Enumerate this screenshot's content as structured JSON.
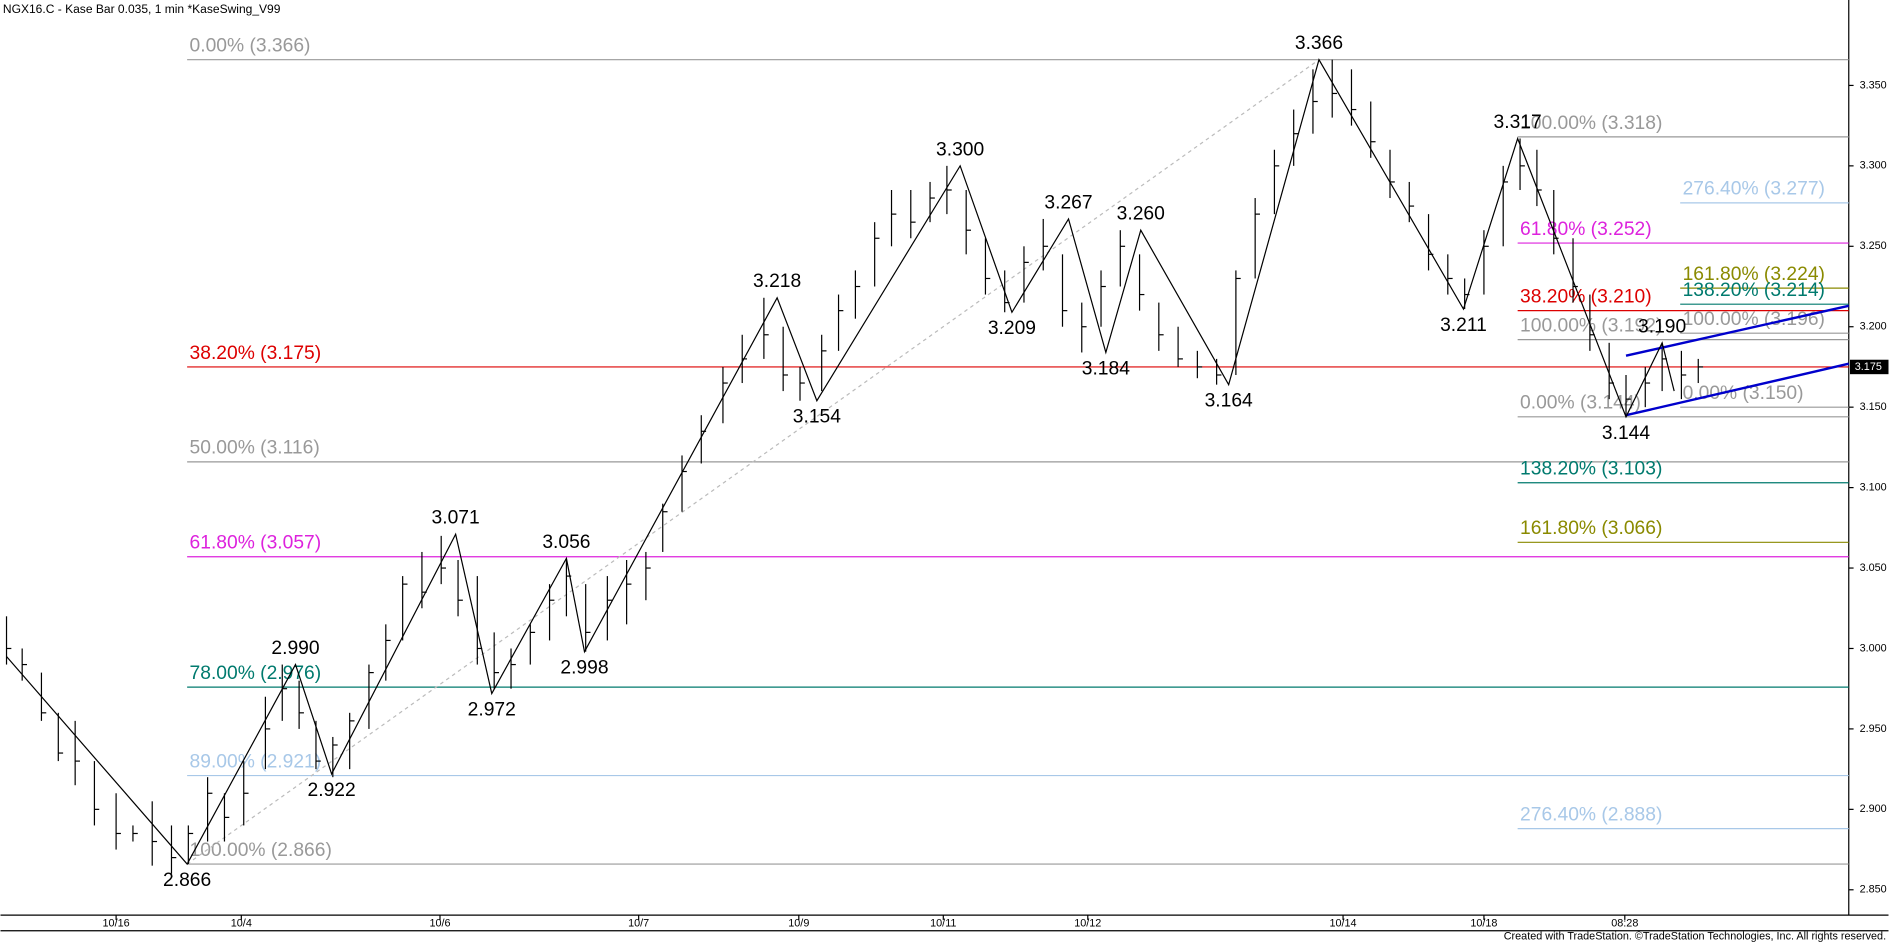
{
  "chart_data": {
    "type": "ohlc",
    "title": "NGX16.C - Kase Bar 0.035, 1 min  *KaseSwing_V99",
    "footer": "Created with TradeStation. ©TradeStation Technologies, Inc. All rights reserved.",
    "xlim": [
      0,
      153.5
    ],
    "ylim": [
      2.8163,
      3.4031
    ],
    "xticks": [
      {
        "value": 9.6,
        "label": "10/16"
      },
      {
        "value": 20,
        "label": "10/4"
      },
      {
        "value": 36.5,
        "label": "10/6"
      },
      {
        "value": 53,
        "label": "10/7"
      },
      {
        "value": 66.3,
        "label": "10/9"
      },
      {
        "value": 78.3,
        "label": "10/11"
      },
      {
        "value": 90.3,
        "label": "10/12"
      },
      {
        "value": 111.5,
        "label": "10/14"
      },
      {
        "value": 123.2,
        "label": "10/18"
      },
      {
        "value": 134.9,
        "label": "08:28"
      }
    ],
    "yticks": [
      {
        "value": 2.85,
        "label": "2.850"
      },
      {
        "value": 2.9,
        "label": "2.900"
      },
      {
        "value": 2.95,
        "label": "2.950"
      },
      {
        "value": 3.0,
        "label": "3.000"
      },
      {
        "value": 3.05,
        "label": "3.050"
      },
      {
        "value": 3.1,
        "label": "3.100"
      },
      {
        "value": 3.15,
        "label": "3.150"
      },
      {
        "value": 3.2,
        "label": "3.200"
      },
      {
        "value": 3.25,
        "label": "3.250"
      },
      {
        "value": 3.3,
        "label": "3.300"
      },
      {
        "value": 3.35,
        "label": "3.350"
      }
    ],
    "last": {
      "value": 3.175,
      "label": "3.175"
    },
    "bar_color": "#000000",
    "bars": {
      "x": [
        0.5,
        1.8,
        3.4,
        4.8,
        6.2,
        7.8,
        9.6,
        11,
        12.6,
        14.2,
        15.6,
        17.2,
        18.6,
        20.2,
        22,
        23.4,
        24.8,
        26.2,
        27.6,
        29,
        30.6,
        32,
        33.4,
        35,
        36.6,
        38,
        39.6,
        41,
        42.4,
        44,
        45.6,
        47,
        48.6,
        50.4,
        52,
        53.6,
        55,
        56.6,
        58.2,
        60,
        61.6,
        63.4,
        65,
        66.4,
        68.2,
        69.6,
        71,
        72.6,
        74,
        75.6,
        77.2,
        78.6,
        80.2,
        81.8,
        83.4,
        85,
        86.6,
        88.2,
        89.8,
        91.4,
        93,
        94.6,
        96.2,
        97.8,
        99.4,
        101,
        102.6,
        104.2,
        105.8,
        107.4,
        109,
        110.6,
        112.2,
        113.8,
        115.4,
        117,
        118.6,
        120.2,
        121.6,
        123.2,
        124.8,
        126.2,
        127.6,
        129,
        130.6,
        132,
        133.6,
        135,
        136.6,
        138,
        139.6,
        141
      ],
      "high": [
        3.02,
        3.0,
        2.985,
        2.96,
        2.955,
        2.93,
        2.91,
        2.89,
        2.905,
        2.89,
        2.89,
        2.92,
        2.91,
        2.93,
        2.97,
        2.99,
        2.98,
        2.955,
        2.945,
        2.96,
        2.99,
        3.015,
        3.045,
        3.06,
        3.07,
        3.055,
        3.045,
        3.01,
        3.0,
        3.015,
        3.04,
        3.056,
        3.04,
        3.045,
        3.055,
        3.06,
        3.09,
        3.12,
        3.145,
        3.175,
        3.195,
        3.218,
        3.2,
        3.175,
        3.195,
        3.22,
        3.235,
        3.265,
        3.285,
        3.285,
        3.29,
        3.3,
        3.285,
        3.255,
        3.235,
        3.25,
        3.267,
        3.245,
        3.215,
        3.235,
        3.26,
        3.245,
        3.215,
        3.2,
        3.185,
        3.18,
        3.235,
        3.28,
        3.31,
        3.335,
        3.36,
        3.366,
        3.36,
        3.34,
        3.31,
        3.29,
        3.27,
        3.245,
        3.23,
        3.26,
        3.3,
        3.317,
        3.31,
        3.285,
        3.255,
        3.22,
        3.19,
        3.17,
        3.175,
        3.19,
        3.185,
        3.18
      ],
      "low": [
        2.99,
        2.98,
        2.955,
        2.93,
        2.915,
        2.89,
        2.875,
        2.88,
        2.865,
        2.86,
        2.866,
        2.88,
        2.88,
        2.89,
        2.925,
        2.955,
        2.95,
        2.925,
        2.92,
        2.925,
        2.95,
        2.98,
        3.005,
        3.025,
        3.04,
        3.02,
        2.99,
        2.975,
        2.975,
        2.99,
        3.005,
        3.02,
        2.998,
        3.005,
        3.015,
        3.03,
        3.06,
        3.085,
        3.115,
        3.14,
        3.165,
        3.18,
        3.16,
        3.154,
        3.16,
        3.185,
        3.205,
        3.225,
        3.25,
        3.255,
        3.265,
        3.27,
        3.245,
        3.22,
        3.209,
        3.215,
        3.235,
        3.2,
        3.184,
        3.2,
        3.225,
        3.21,
        3.185,
        3.175,
        3.168,
        3.164,
        3.17,
        3.23,
        3.27,
        3.3,
        3.32,
        3.33,
        3.325,
        3.305,
        3.28,
        3.265,
        3.235,
        3.22,
        3.211,
        3.22,
        3.25,
        3.285,
        3.275,
        3.245,
        3.215,
        3.185,
        3.155,
        3.144,
        3.15,
        3.16,
        3.155,
        3.165
      ],
      "close": [
        3.0,
        2.99,
        2.96,
        2.935,
        2.93,
        2.9,
        2.885,
        2.885,
        2.88,
        2.87,
        2.885,
        2.91,
        2.895,
        2.91,
        2.95,
        2.975,
        2.96,
        2.93,
        2.94,
        2.955,
        2.985,
        3.005,
        3.04,
        3.035,
        3.05,
        3.03,
        3.0,
        2.985,
        2.99,
        3.01,
        3.03,
        3.045,
        3.01,
        3.03,
        3.04,
        3.05,
        3.085,
        3.11,
        3.135,
        3.165,
        3.18,
        3.195,
        3.17,
        3.165,
        3.185,
        3.21,
        3.225,
        3.255,
        3.27,
        3.265,
        3.28,
        3.285,
        3.26,
        3.23,
        3.215,
        3.24,
        3.25,
        3.21,
        3.2,
        3.225,
        3.25,
        3.22,
        3.195,
        3.18,
        3.175,
        3.17,
        3.23,
        3.27,
        3.3,
        3.32,
        3.34,
        3.345,
        3.335,
        3.315,
        3.29,
        3.275,
        3.245,
        3.23,
        3.22,
        3.25,
        3.29,
        3.3,
        3.285,
        3.255,
        3.225,
        3.195,
        3.165,
        3.155,
        3.165,
        3.18,
        3.17,
        3.175
      ]
    },
    "swings": {
      "color": "#000000",
      "x": [
        0.5,
        15.5,
        24.5,
        27.5,
        37.8,
        40.8,
        47,
        48.5,
        64.5,
        67.8,
        79.7,
        84,
        88.7,
        91.8,
        94.7,
        102,
        109.5,
        121.5,
        126,
        135,
        138,
        139
      ],
      "values": [
        2.995,
        2.866,
        2.99,
        2.922,
        3.071,
        2.972,
        3.056,
        2.998,
        3.218,
        3.154,
        3.3,
        3.209,
        3.267,
        3.184,
        3.26,
        3.164,
        3.366,
        3.211,
        3.317,
        3.144,
        3.19,
        3.16
      ],
      "value_labels": [
        null,
        "2.866",
        "2.990",
        "2.922",
        "3.071",
        "2.972",
        "3.056",
        "2.998",
        "3.218",
        "3.154",
        "3.300",
        "3.209",
        "3.267",
        "3.184",
        "3.260",
        "3.164",
        "3.366",
        "3.211",
        "3.317",
        "3.144",
        "3.190",
        null
      ]
    },
    "trendline": {
      "color": "#bbbbbb",
      "x": [
        15.5,
        109.5
      ],
      "values": [
        2.866,
        3.366
      ]
    },
    "channels": [
      {
        "color": "#0000cc",
        "x": [
          135,
          153.5
        ],
        "values": [
          3.182,
          3.213
        ]
      },
      {
        "color": "#0000cc",
        "x": [
          135,
          153.5
        ],
        "values": [
          3.145,
          3.177
        ]
      }
    ],
    "fib_levels": [
      {
        "label": "0.00% (3.366)",
        "value": 3.366,
        "start": 15.5,
        "color": "#999999"
      },
      {
        "label": "38.20% (3.175)",
        "value": 3.175,
        "start": 15.5,
        "color": "#dd0000"
      },
      {
        "label": "50.00% (3.116)",
        "value": 3.116,
        "start": 15.5,
        "color": "#999999"
      },
      {
        "label": "61.80% (3.057)",
        "value": 3.057,
        "start": 15.5,
        "color": "#dd22dd"
      },
      {
        "label": "78.00% (2.976)",
        "value": 2.976,
        "start": 15.5,
        "color": "#007a6e"
      },
      {
        "label": "89.00% (2.921)",
        "value": 2.921,
        "start": 15.5,
        "color": "#a8c8e8"
      },
      {
        "label": "100.00% (2.866)",
        "value": 2.866,
        "start": 15.5,
        "color": "#999999"
      },
      {
        "label": "100.00% (3.318)",
        "value": 3.318,
        "start": 126,
        "color": "#999999"
      },
      {
        "label": "61.80% (3.252)",
        "value": 3.252,
        "start": 126,
        "color": "#dd22dd"
      },
      {
        "label": "38.20% (3.210)",
        "value": 3.21,
        "start": 126,
        "color": "#dd0000"
      },
      {
        "label": "100.00% (3.192)",
        "value": 3.192,
        "start": 126,
        "color": "#999999"
      },
      {
        "label": "0.00% (3.144)",
        "value": 3.144,
        "start": 126,
        "color": "#999999"
      },
      {
        "label": "138.20% (3.103)",
        "value": 3.103,
        "start": 126,
        "color": "#007a6e"
      },
      {
        "label": "161.80% (3.066)",
        "value": 3.066,
        "start": 126,
        "color": "#8a8a00"
      },
      {
        "label": "276.40% (2.888)",
        "value": 2.888,
        "start": 126,
        "color": "#a8c8e8"
      },
      {
        "label": "276.40% (3.277)",
        "value": 3.277,
        "start": 139.5,
        "color": "#a8c8e8"
      },
      {
        "label": "161.80% (3.224)",
        "value": 3.224,
        "start": 139.5,
        "color": "#8a8a00"
      },
      {
        "label": "138.20% (3.214)",
        "value": 3.214,
        "start": 139.5,
        "color": "#007a6e"
      },
      {
        "label": "100.00% (3.196)",
        "value": 3.196,
        "start": 139.5,
        "color": "#999999"
      },
      {
        "label": "0.00% (3.150)",
        "value": 3.15,
        "start": 139.5,
        "color": "#999999"
      }
    ]
  }
}
